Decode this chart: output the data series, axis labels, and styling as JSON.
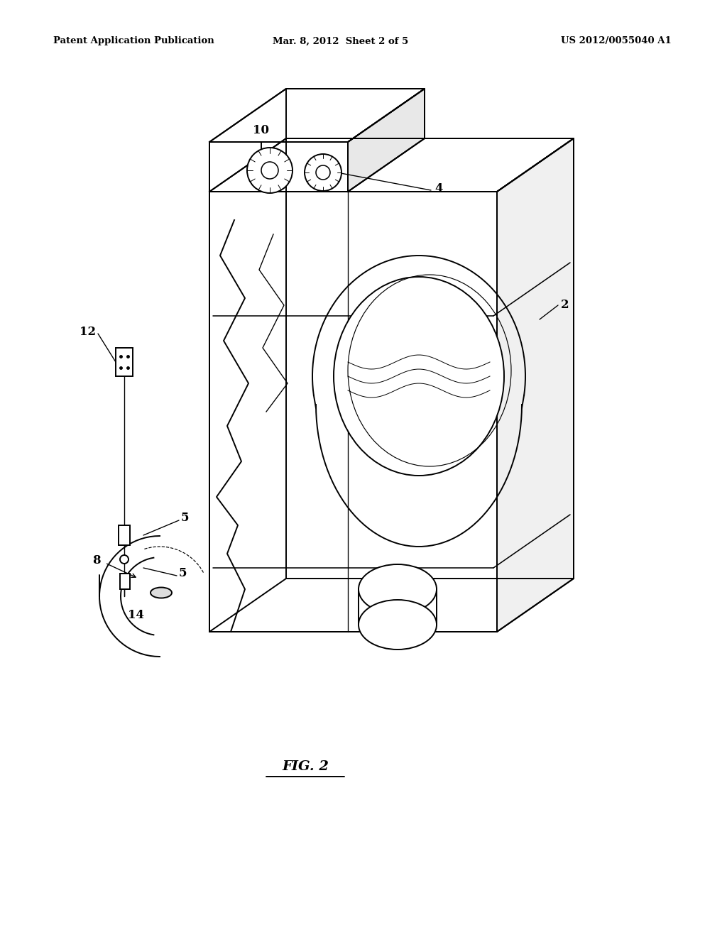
{
  "background_color": "#ffffff",
  "header_left": "Patent Application Publication",
  "header_center": "Mar. 8, 2012  Sheet 2 of 5",
  "header_right": "US 2012/0055040 A1",
  "fig_label": "FIG. 2",
  "line_color": "#000000",
  "line_width": 1.4,
  "figsize": [
    10.24,
    13.2
  ],
  "dpi": 100
}
